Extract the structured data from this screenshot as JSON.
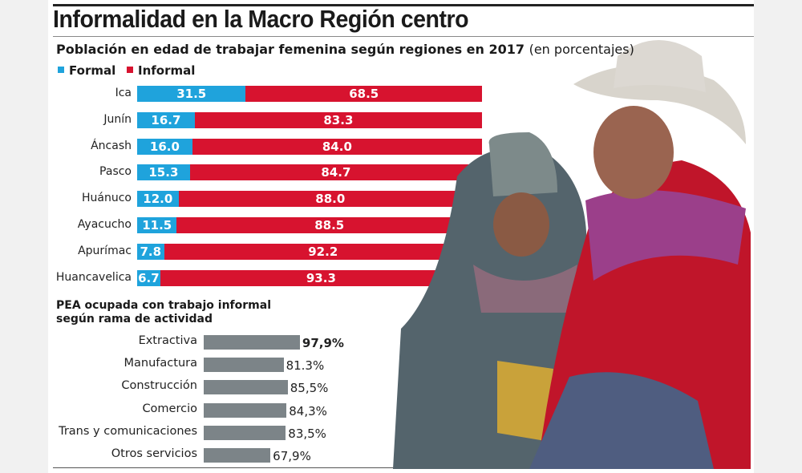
{
  "title": "Informalidad en la Macro Región centro",
  "subtitle": "Población en edad de trabajar femenina según regiones en 2017",
  "subtitle_unit": "(en porcentajes)",
  "colors": {
    "formal": "#1fa3dc",
    "informal": "#d7132f",
    "bar": "#7c8488"
  },
  "chart_data": [
    {
      "type": "bar",
      "orientation": "horizontal",
      "stacked": true,
      "categories": [
        "Ica",
        "Junín",
        "Áncash",
        "Pasco",
        "Huánuco",
        "Ayacucho",
        "Apurímac",
        "Huancavelica"
      ],
      "series": [
        {
          "name": "Formal",
          "values": [
            "31.5",
            "16.7",
            "16.0",
            "15.3",
            "12.0",
            "11.5",
            "7.8",
            "6.7"
          ]
        },
        {
          "name": "Informal",
          "values": [
            "68.5",
            "83.3",
            "84.0",
            "84.7",
            "88.0",
            "88.5",
            "92.2",
            "93.3"
          ]
        }
      ],
      "legend": "top-left",
      "xlim": [
        0,
        100
      ]
    },
    {
      "type": "bar",
      "orientation": "horizontal",
      "title_line1": "PEA ocupada con trabajo informal",
      "title_line2": "según rama de actividad",
      "categories": [
        "Extractiva",
        "Manufactura",
        "Construcción",
        "Comercio",
        "Trans y comunicaciones",
        "Otros servicios"
      ],
      "values": [
        97.9,
        81.3,
        85.5,
        84.3,
        83.5,
        67.9
      ],
      "labels": [
        "97,9%",
        "81.3%",
        "85,5%",
        "84,3%",
        "83,5%",
        "67,9%"
      ]
    }
  ]
}
